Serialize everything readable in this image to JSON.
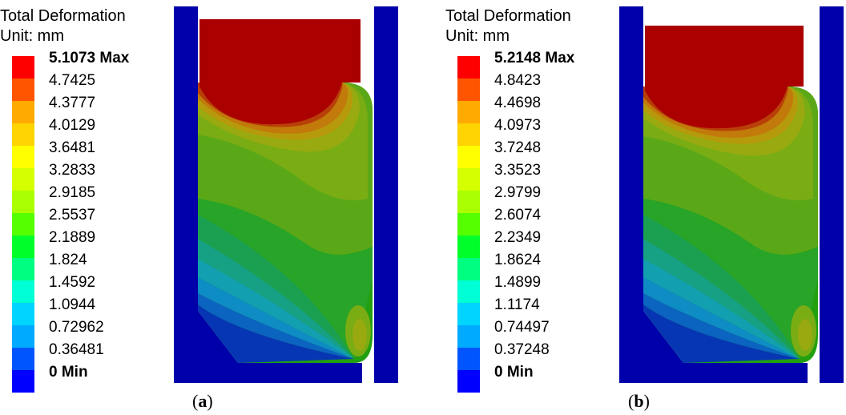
{
  "legend_colors": [
    "#ff0000",
    "#ff5500",
    "#ffaa00",
    "#ffd400",
    "#ffff00",
    "#d4ff00",
    "#aaff00",
    "#55ff00",
    "#00ff2a",
    "#00ff80",
    "#00ffd4",
    "#00d4ff",
    "#00aaff",
    "#0055ff",
    "#0000ff"
  ],
  "panels": [
    {
      "title": "Total Deformation",
      "unit": "Unit: mm",
      "max_label": "5.1073 Max",
      "levels": [
        "4.7425",
        "4.3777",
        "4.0129",
        "3.6481",
        "3.2833",
        "2.9185",
        "2.5537",
        "2.1889",
        "1.824",
        "1.4592",
        "1.0944",
        "0.72962",
        "0.36481"
      ],
      "min_label": "0 Min",
      "caption_letter": "a"
    },
    {
      "title": "Total Deformation",
      "unit": "Unit: mm",
      "max_label": "5.2148 Max",
      "levels": [
        "4.8423",
        "4.4698",
        "4.0973",
        "3.7248",
        "3.3523",
        "2.9799",
        "2.6074",
        "2.2349",
        "1.8624",
        "1.4899",
        "1.1174",
        "0.74497",
        "0.37248"
      ],
      "min_label": "0 Min",
      "caption_letter": "b"
    }
  ]
}
